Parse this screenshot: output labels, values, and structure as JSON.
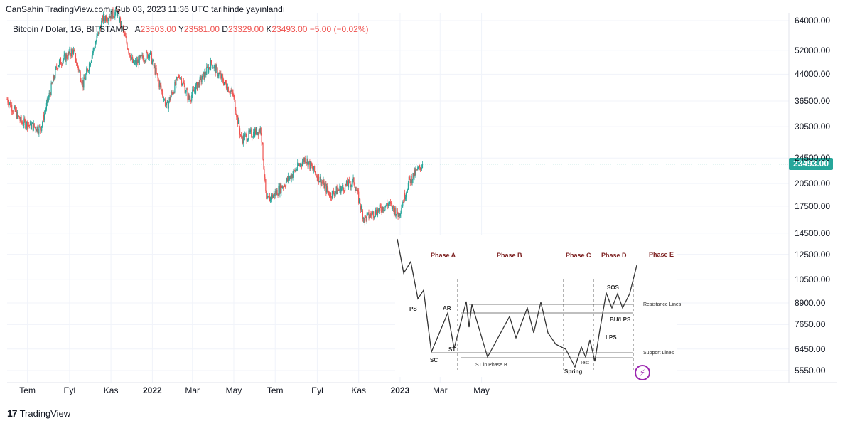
{
  "header": {
    "published_line": "CanSahin TradingView.com, Şub 03, 2023 11:36 UTC tarihinde yayınlandı",
    "symbol": "Bitcoin / Dolar, 1G, BITSTAMP",
    "open_label": "A",
    "open": "23503.00",
    "high_label": "Y",
    "high": "23581.00",
    "low_label": "D",
    "low": "23329.00",
    "close_label": "K",
    "close": "23493.00",
    "change": "−5.00 (−0.02%)"
  },
  "price_badge": "23493.00",
  "footer": {
    "logo": "17",
    "brand": "TradingView"
  },
  "colors": {
    "up": "#26a69a",
    "down": "#ef5350",
    "badge": "#26a69a",
    "phase": "#7b1e1e",
    "bolt": "#9c27b0"
  },
  "chart_data": {
    "type": "candlestick",
    "title": "Bitcoin / Dolar, 1G, BITSTAMP",
    "y_scale": "log",
    "ylim": [
      5000,
      70000
    ],
    "y_ticks": [
      "64000.00",
      "52000.00",
      "44000.00",
      "36500.00",
      "30500.00",
      "24500.00",
      "20500.00",
      "17500.00",
      "14500.00",
      "12500.00",
      "10500.00",
      "8900.00",
      "7650.00",
      "6450.00",
      "5550.00"
    ],
    "x_ticks": [
      {
        "label": "Tem",
        "bold": false
      },
      {
        "label": "Eyl",
        "bold": false
      },
      {
        "label": "Kas",
        "bold": false
      },
      {
        "label": "2022",
        "bold": true
      },
      {
        "label": "Mar",
        "bold": false
      },
      {
        "label": "May",
        "bold": false
      },
      {
        "label": "Tem",
        "bold": false
      },
      {
        "label": "Eyl",
        "bold": false
      },
      {
        "label": "Kas",
        "bold": false
      },
      {
        "label": "2023",
        "bold": true
      },
      {
        "label": "Mar",
        "bold": false
      },
      {
        "label": "May",
        "bold": false
      }
    ],
    "last_price": 23493,
    "price_path": [
      [
        "2021-06-01",
        37000
      ],
      [
        "2021-06-22",
        31500
      ],
      [
        "2021-07-20",
        30000
      ],
      [
        "2021-08-14",
        47000
      ],
      [
        "2021-09-06",
        52000
      ],
      [
        "2021-09-21",
        41000
      ],
      [
        "2021-10-20",
        65000
      ],
      [
        "2021-11-10",
        68000
      ],
      [
        "2021-12-04",
        47000
      ],
      [
        "2021-12-28",
        51000
      ],
      [
        "2022-01-22",
        35000
      ],
      [
        "2022-02-10",
        44000
      ],
      [
        "2022-02-24",
        37000
      ],
      [
        "2022-03-29",
        47500
      ],
      [
        "2022-04-30",
        38000
      ],
      [
        "2022-05-12",
        28000
      ],
      [
        "2022-06-10",
        30000
      ],
      [
        "2022-06-18",
        18000
      ],
      [
        "2022-07-15",
        20500
      ],
      [
        "2022-08-14",
        24500
      ],
      [
        "2022-09-20",
        19000
      ],
      [
        "2022-10-25",
        20800
      ],
      [
        "2022-11-09",
        16000
      ],
      [
        "2022-12-15",
        17800
      ],
      [
        "2022-12-30",
        16500
      ],
      [
        "2023-01-14",
        20800
      ],
      [
        "2023-02-03",
        23493
      ]
    ],
    "inset": {
      "phases": [
        "Phase A",
        "Phase B",
        "Phase C",
        "Phase D",
        "Phase E"
      ],
      "labels": [
        "PS",
        "SC",
        "AR",
        "ST",
        "ST in Phase B",
        "Spring",
        "Test",
        "LPS",
        "BU/LPS",
        "SOS",
        "Resistance Lines",
        "Support Lines"
      ]
    }
  }
}
